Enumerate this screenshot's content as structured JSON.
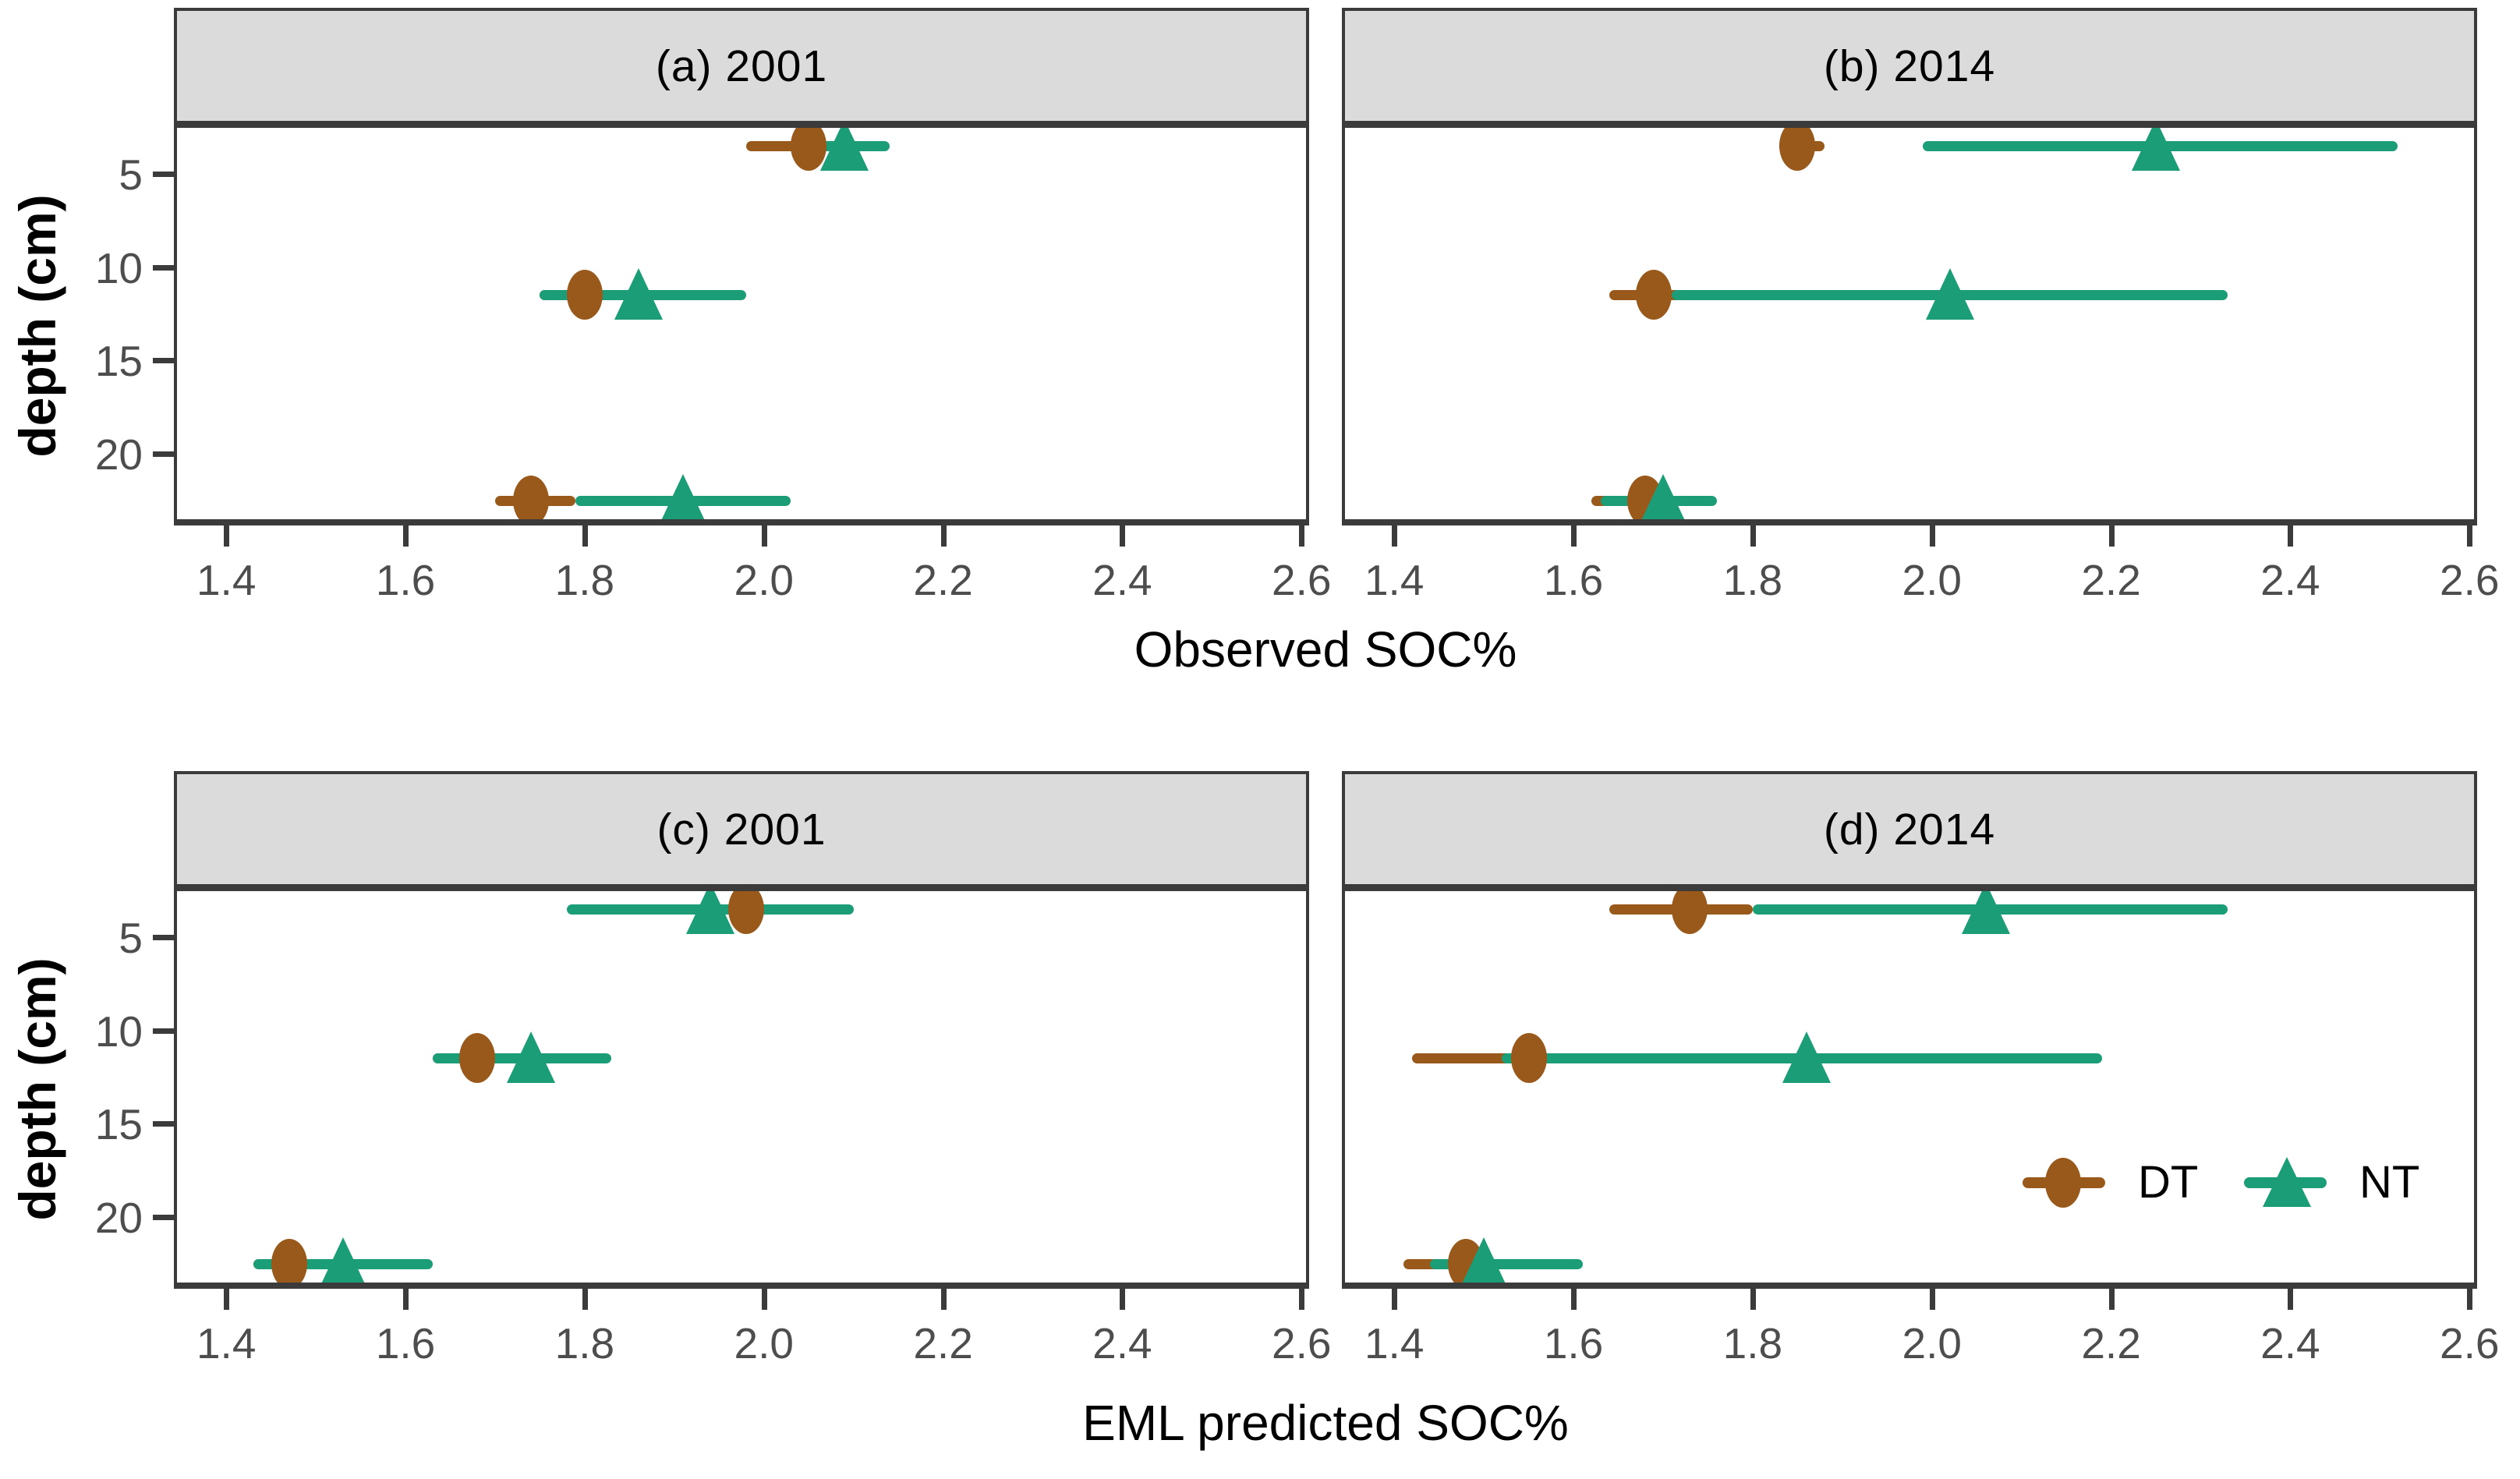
{
  "figure": {
    "y_axis_label": "depth (cm)",
    "x_axis_title_top": "Observed SOC%",
    "x_axis_title_bottom": "EML predicted SOC%",
    "x_tick_labels": [
      "1.4",
      "1.6",
      "1.8",
      "2.0",
      "2.2",
      "2.4",
      "2.6"
    ],
    "y_tick_labels": [
      "5",
      "10",
      "15",
      "20"
    ],
    "colors": {
      "dt": "#99591B",
      "nt": "#1B9E77",
      "strip_bg": "#DBDBDB",
      "panel_border": "#3B3B3B",
      "tick_text": "#4D4D4D",
      "title_text": "#000000"
    },
    "legend": {
      "items": [
        {
          "label": "DT",
          "marker": "circle"
        },
        {
          "label": "NT",
          "marker": "triangle"
        }
      ]
    }
  },
  "chart_data": [
    {
      "id": "a",
      "type": "scatter",
      "title": "(a) 2001",
      "xlabel": "Observed SOC%",
      "ylabel": "depth (cm)",
      "x_range": [
        1.345,
        2.605
      ],
      "x_ticks": [
        1.4,
        1.6,
        1.8,
        2.0,
        2.2,
        2.4,
        2.6
      ],
      "depth_range": [
        2.55,
        23.5
      ],
      "depth_ticks": [
        5,
        10,
        15,
        20
      ],
      "series": [
        {
          "name": "DT",
          "marker": "circle",
          "color": "#99591B",
          "points": [
            {
              "depth": 3.5,
              "value": 2.05,
              "lo": 1.98,
              "hi": 2.13
            },
            {
              "depth": 11.5,
              "value": 1.8,
              "lo": 1.75,
              "hi": 1.84
            },
            {
              "depth": 22.5,
              "value": 1.74,
              "lo": 1.7,
              "hi": 1.79
            }
          ]
        },
        {
          "name": "NT",
          "marker": "triangle",
          "color": "#1B9E77",
          "points": [
            {
              "depth": 3.5,
              "value": 2.09,
              "lo": 2.03,
              "hi": 2.14
            },
            {
              "depth": 11.5,
              "value": 1.86,
              "lo": 1.75,
              "hi": 1.98
            },
            {
              "depth": 22.5,
              "value": 1.91,
              "lo": 1.79,
              "hi": 2.03
            }
          ]
        }
      ]
    },
    {
      "id": "b",
      "type": "scatter",
      "title": "(b) 2014",
      "xlabel": "Observed SOC%",
      "ylabel": "depth (cm)",
      "x_range": [
        1.345,
        2.605
      ],
      "x_ticks": [
        1.4,
        1.6,
        1.8,
        2.0,
        2.2,
        2.4,
        2.6
      ],
      "depth_range": [
        2.55,
        23.5
      ],
      "depth_ticks": [
        5,
        10,
        15,
        20
      ],
      "series": [
        {
          "name": "DT",
          "marker": "circle",
          "color": "#99591B",
          "points": [
            {
              "depth": 3.5,
              "value": 1.85,
              "lo": 1.83,
              "hi": 1.88
            },
            {
              "depth": 11.5,
              "value": 1.69,
              "lo": 1.64,
              "hi": 1.73
            },
            {
              "depth": 22.5,
              "value": 1.68,
              "lo": 1.62,
              "hi": 1.74
            }
          ]
        },
        {
          "name": "NT",
          "marker": "triangle",
          "color": "#1B9E77",
          "points": [
            {
              "depth": 3.5,
              "value": 2.25,
              "lo": 1.99,
              "hi": 2.52
            },
            {
              "depth": 11.5,
              "value": 2.02,
              "lo": 1.71,
              "hi": 2.33
            },
            {
              "depth": 22.5,
              "value": 1.7,
              "lo": 1.63,
              "hi": 1.76
            }
          ]
        }
      ]
    },
    {
      "id": "c",
      "type": "scatter",
      "title": "(c) 2001",
      "xlabel": "EML predicted SOC%",
      "ylabel": "depth (cm)",
      "x_range": [
        1.345,
        2.605
      ],
      "x_ticks": [
        1.4,
        1.6,
        1.8,
        2.0,
        2.2,
        2.4,
        2.6
      ],
      "depth_range": [
        2.55,
        23.5
      ],
      "depth_ticks": [
        5,
        10,
        15,
        20
      ],
      "series": [
        {
          "name": "DT",
          "marker": "circle",
          "color": "#99591B",
          "points": [
            {
              "depth": 3.5,
              "value": 1.98,
              "lo": 1.95,
              "hi": 2.02
            },
            {
              "depth": 11.5,
              "value": 1.68,
              "lo": 1.63,
              "hi": 1.72
            },
            {
              "depth": 22.5,
              "value": 1.47,
              "lo": 1.43,
              "hi": 1.51
            }
          ]
        },
        {
          "name": "NT",
          "marker": "triangle",
          "color": "#1B9E77",
          "points": [
            {
              "depth": 3.5,
              "value": 1.94,
              "lo": 1.78,
              "hi": 2.1
            },
            {
              "depth": 11.5,
              "value": 1.74,
              "lo": 1.63,
              "hi": 1.83
            },
            {
              "depth": 22.5,
              "value": 1.53,
              "lo": 1.43,
              "hi": 1.63
            }
          ]
        }
      ]
    },
    {
      "id": "d",
      "type": "scatter",
      "title": "(d) 2014",
      "xlabel": "EML predicted SOC%",
      "ylabel": "depth (cm)",
      "x_range": [
        1.345,
        2.605
      ],
      "x_ticks": [
        1.4,
        1.6,
        1.8,
        2.0,
        2.2,
        2.4,
        2.6
      ],
      "depth_range": [
        2.55,
        23.5
      ],
      "depth_ticks": [
        5,
        10,
        15,
        20
      ],
      "series": [
        {
          "name": "DT",
          "marker": "circle",
          "color": "#99591B",
          "points": [
            {
              "depth": 3.5,
              "value": 1.73,
              "lo": 1.64,
              "hi": 1.8
            },
            {
              "depth": 11.5,
              "value": 1.55,
              "lo": 1.42,
              "hi": 1.68
            },
            {
              "depth": 22.5,
              "value": 1.48,
              "lo": 1.41,
              "hi": 1.55
            }
          ]
        },
        {
          "name": "NT",
          "marker": "triangle",
          "color": "#1B9E77",
          "points": [
            {
              "depth": 3.5,
              "value": 2.06,
              "lo": 1.8,
              "hi": 2.33
            },
            {
              "depth": 11.5,
              "value": 1.86,
              "lo": 1.52,
              "hi": 2.19
            },
            {
              "depth": 22.5,
              "value": 1.5,
              "lo": 1.44,
              "hi": 1.61
            }
          ]
        }
      ]
    }
  ]
}
